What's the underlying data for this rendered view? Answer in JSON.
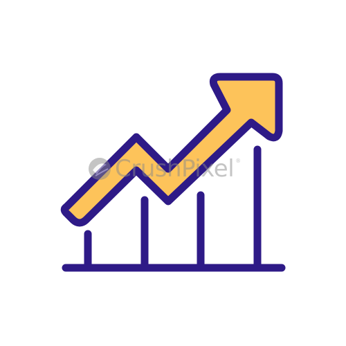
{
  "icon": {
    "name": "growth-chart-arrow-icon",
    "colors": {
      "outline": "#2e1a87",
      "arrow_fill": "#fdc35a",
      "background": "#ffffff"
    }
  },
  "watermark": {
    "text": "CrushPixel",
    "registered": "®",
    "color": "#8a8a8a"
  }
}
